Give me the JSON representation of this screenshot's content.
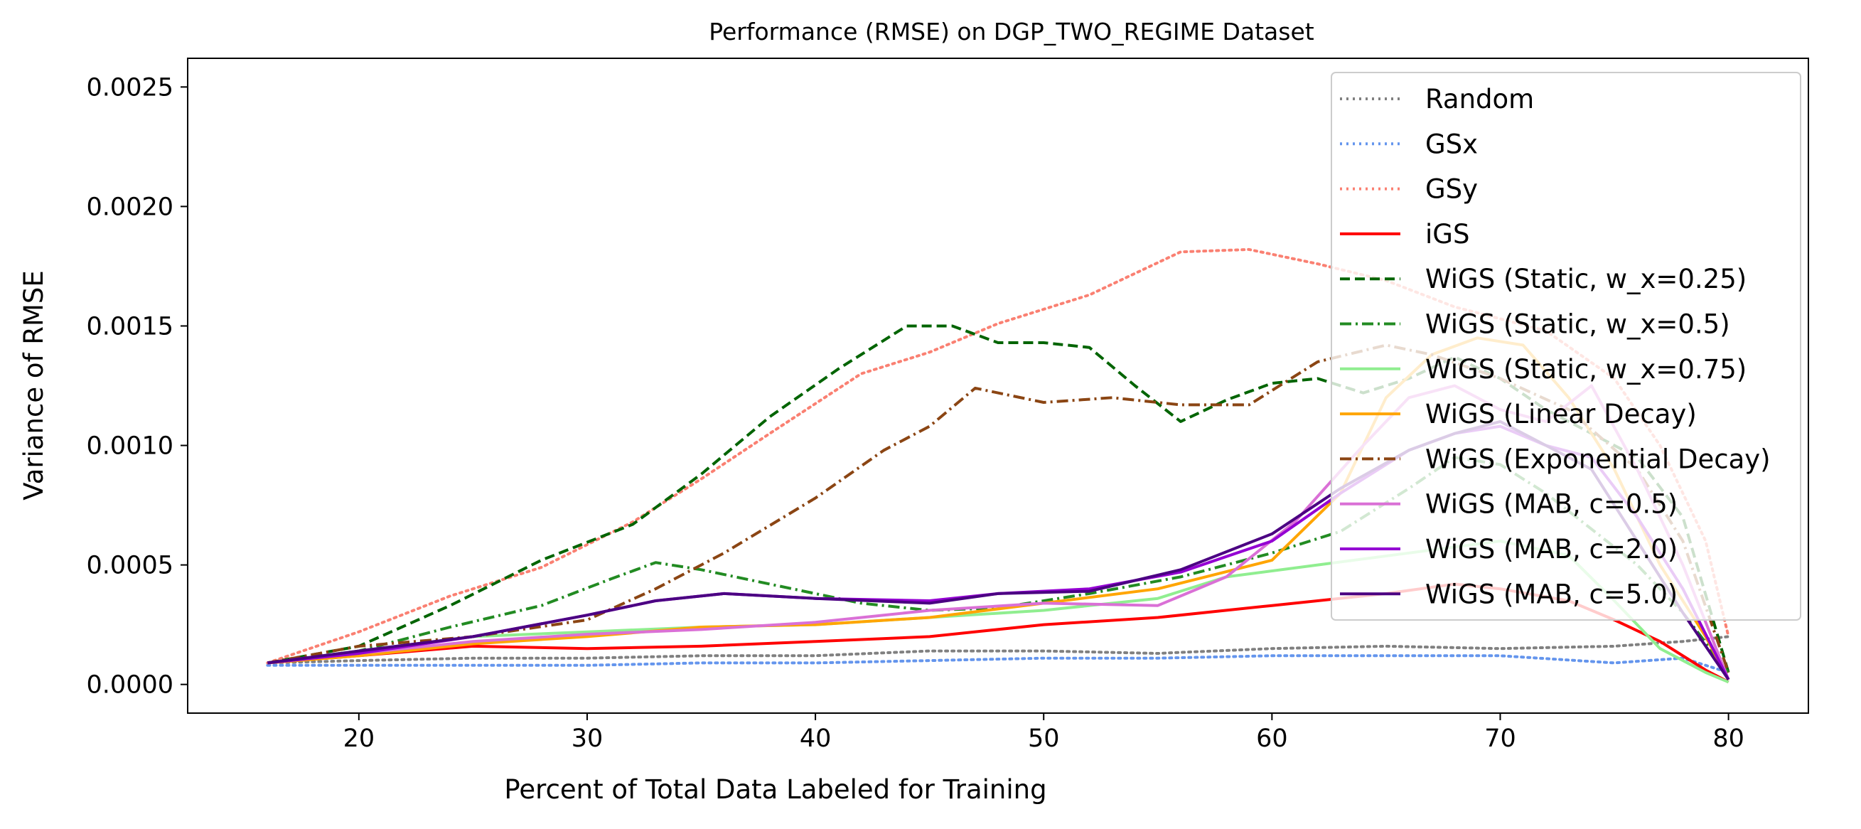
{
  "chart_data": {
    "type": "line",
    "title": "Performance (RMSE) on DGP_TWO_REGIME Dataset",
    "xlabel": "Percent of Total Data Labeled for Training",
    "ylabel": "Variance of RMSE",
    "xlim": [
      12.5,
      83.5
    ],
    "ylim": [
      -0.00012,
      0.00262
    ],
    "xticks": [
      20,
      30,
      40,
      50,
      60,
      70,
      80
    ],
    "yticks": [
      0.0,
      0.0005,
      0.001,
      0.0015,
      0.002,
      0.0025
    ],
    "xtick_labels": [
      "20",
      "30",
      "40",
      "50",
      "60",
      "70",
      "80"
    ],
    "ytick_labels": [
      "0.0000",
      "0.0005",
      "0.0010",
      "0.0015",
      "0.0020",
      "0.0025"
    ],
    "grid": false,
    "legend_position": "upper right",
    "series": [
      {
        "name": "Random",
        "color": "#808080",
        "dash": "dotted",
        "points": [
          [
            16,
            9e-05
          ],
          [
            20,
            0.0001
          ],
          [
            25,
            0.00011
          ],
          [
            30,
            0.00011
          ],
          [
            35,
            0.00012
          ],
          [
            40,
            0.00012
          ],
          [
            45,
            0.00014
          ],
          [
            50,
            0.00014
          ],
          [
            55,
            0.00013
          ],
          [
            60,
            0.00015
          ],
          [
            65,
            0.00016
          ],
          [
            70,
            0.00015
          ],
          [
            75,
            0.00016
          ],
          [
            78,
            0.00018
          ],
          [
            80,
            0.0002
          ]
        ]
      },
      {
        "name": "GSx",
        "color": "#6495ED",
        "dash": "dotted",
        "points": [
          [
            16,
            8e-05
          ],
          [
            20,
            8e-05
          ],
          [
            25,
            8e-05
          ],
          [
            30,
            8e-05
          ],
          [
            35,
            9e-05
          ],
          [
            40,
            9e-05
          ],
          [
            45,
            0.0001
          ],
          [
            50,
            0.00011
          ],
          [
            55,
            0.00011
          ],
          [
            60,
            0.00012
          ],
          [
            65,
            0.00012
          ],
          [
            70,
            0.00012
          ],
          [
            75,
            9e-05
          ],
          [
            78,
            0.00011
          ],
          [
            80,
            5e-05
          ]
        ]
      },
      {
        "name": "GSy",
        "color": "#FA8072",
        "dash": "dotted",
        "points": [
          [
            16,
            9e-05
          ],
          [
            20,
            0.00022
          ],
          [
            24,
            0.00037
          ],
          [
            28,
            0.00049
          ],
          [
            32,
            0.00068
          ],
          [
            35,
            0.00086
          ],
          [
            38,
            0.00105
          ],
          [
            42,
            0.0013
          ],
          [
            45,
            0.00139
          ],
          [
            48,
            0.00151
          ],
          [
            52,
            0.00163
          ],
          [
            56,
            0.00181
          ],
          [
            59,
            0.00182
          ],
          [
            62,
            0.00176
          ],
          [
            65,
            0.00169
          ],
          [
            68,
            0.00158
          ],
          [
            72,
            0.00148
          ],
          [
            75,
            0.00128
          ],
          [
            77,
            0.001
          ],
          [
            79,
            0.0006
          ],
          [
            80,
            0.0002
          ]
        ]
      },
      {
        "name": "iGS",
        "color": "#FF0000",
        "dash": "solid",
        "points": [
          [
            16,
            9e-05
          ],
          [
            20,
            0.00012
          ],
          [
            25,
            0.00016
          ],
          [
            30,
            0.00015
          ],
          [
            35,
            0.00016
          ],
          [
            40,
            0.00018
          ],
          [
            45,
            0.0002
          ],
          [
            50,
            0.00025
          ],
          [
            55,
            0.00028
          ],
          [
            60,
            0.00033
          ],
          [
            65,
            0.00038
          ],
          [
            68,
            0.00042
          ],
          [
            70,
            0.0004
          ],
          [
            73,
            0.00035
          ],
          [
            75,
            0.00027
          ],
          [
            77,
            0.00018
          ],
          [
            79,
            6e-05
          ],
          [
            80,
            1e-05
          ]
        ]
      },
      {
        "name": "WiGS (Static, w_x=0.25)",
        "color": "#006400",
        "dash": "dashed",
        "points": [
          [
            16,
            9e-05
          ],
          [
            20,
            0.00016
          ],
          [
            24,
            0.00033
          ],
          [
            28,
            0.00052
          ],
          [
            32,
            0.00067
          ],
          [
            35,
            0.00088
          ],
          [
            38,
            0.00112
          ],
          [
            41,
            0.00132
          ],
          [
            44,
            0.0015
          ],
          [
            46,
            0.0015
          ],
          [
            48,
            0.00143
          ],
          [
            50,
            0.00143
          ],
          [
            52,
            0.00141
          ],
          [
            54,
            0.00125
          ],
          [
            56,
            0.0011
          ],
          [
            58,
            0.00119
          ],
          [
            60,
            0.00126
          ],
          [
            62,
            0.00128
          ],
          [
            64,
            0.00122
          ],
          [
            66,
            0.00128
          ],
          [
            68,
            0.00137
          ],
          [
            70,
            0.00128
          ],
          [
            72,
            0.00115
          ],
          [
            74,
            0.00105
          ],
          [
            76,
            0.00095
          ],
          [
            78,
            0.0007
          ],
          [
            80,
            5e-05
          ]
        ]
      },
      {
        "name": "WiGS (Static, w_x=0.5)",
        "color": "#228B22",
        "dash": "dashdot",
        "points": [
          [
            16,
            9e-05
          ],
          [
            20,
            0.00014
          ],
          [
            24,
            0.00024
          ],
          [
            28,
            0.00033
          ],
          [
            31,
            0.00044
          ],
          [
            33,
            0.00051
          ],
          [
            35,
            0.00048
          ],
          [
            38,
            0.00042
          ],
          [
            42,
            0.00034
          ],
          [
            45,
            0.00031
          ],
          [
            48,
            0.00032
          ],
          [
            52,
            0.00038
          ],
          [
            56,
            0.00045
          ],
          [
            60,
            0.00055
          ],
          [
            63,
            0.00064
          ],
          [
            66,
            0.00082
          ],
          [
            68,
            0.00095
          ],
          [
            70,
            0.00092
          ],
          [
            72,
            0.0008
          ],
          [
            74,
            0.00065
          ],
          [
            76,
            0.0005
          ],
          [
            78,
            0.0003
          ],
          [
            80,
            5e-05
          ]
        ]
      },
      {
        "name": "WiGS (Static, w_x=0.75)",
        "color": "#90EE90",
        "dash": "solid",
        "points": [
          [
            16,
            9e-05
          ],
          [
            20,
            0.00014
          ],
          [
            25,
            0.0002
          ],
          [
            30,
            0.00022
          ],
          [
            35,
            0.00024
          ],
          [
            40,
            0.00025
          ],
          [
            45,
            0.00028
          ],
          [
            50,
            0.00031
          ],
          [
            55,
            0.00036
          ],
          [
            58,
            0.00045
          ],
          [
            62,
            0.0005
          ],
          [
            66,
            0.00055
          ],
          [
            70,
            0.0006
          ],
          [
            73,
            0.00054
          ],
          [
            75,
            0.00035
          ],
          [
            77,
            0.00015
          ],
          [
            79,
            5e-05
          ],
          [
            80,
            1e-05
          ]
        ]
      },
      {
        "name": "WiGS (Linear Decay)",
        "color": "#FFA500",
        "dash": "solid",
        "points": [
          [
            16,
            9e-05
          ],
          [
            20,
            0.00012
          ],
          [
            25,
            0.00017
          ],
          [
            30,
            0.0002
          ],
          [
            35,
            0.00024
          ],
          [
            40,
            0.00025
          ],
          [
            45,
            0.00028
          ],
          [
            50,
            0.00034
          ],
          [
            55,
            0.0004
          ],
          [
            60,
            0.00052
          ],
          [
            63,
            0.0008
          ],
          [
            65,
            0.0012
          ],
          [
            67,
            0.00138
          ],
          [
            69,
            0.00145
          ],
          [
            71,
            0.00142
          ],
          [
            73,
            0.0012
          ],
          [
            75,
            0.0009
          ],
          [
            77,
            0.0005
          ],
          [
            79,
            0.0002
          ],
          [
            80,
            2e-05
          ]
        ]
      },
      {
        "name": "WiGS (Exponential Decay)",
        "color": "#8B4513",
        "dash": "dashdot",
        "points": [
          [
            16,
            9e-05
          ],
          [
            20,
            0.00016
          ],
          [
            25,
            0.0002
          ],
          [
            30,
            0.00027
          ],
          [
            33,
            0.0004
          ],
          [
            36,
            0.00055
          ],
          [
            40,
            0.00078
          ],
          [
            43,
            0.00098
          ],
          [
            45,
            0.00108
          ],
          [
            47,
            0.00124
          ],
          [
            50,
            0.00118
          ],
          [
            53,
            0.0012
          ],
          [
            56,
            0.00117
          ],
          [
            59,
            0.00117
          ],
          [
            62,
            0.00135
          ],
          [
            65,
            0.00142
          ],
          [
            67,
            0.00138
          ],
          [
            70,
            0.00128
          ],
          [
            73,
            0.00115
          ],
          [
            76,
            0.0009
          ],
          [
            78,
            0.0006
          ],
          [
            80,
            5e-05
          ]
        ]
      },
      {
        "name": "WiGS (MAB, c=0.5)",
        "color": "#DA70D6",
        "dash": "solid",
        "points": [
          [
            16,
            9e-05
          ],
          [
            20,
            0.00013
          ],
          [
            25,
            0.00018
          ],
          [
            30,
            0.00021
          ],
          [
            35,
            0.00023
          ],
          [
            40,
            0.00026
          ],
          [
            45,
            0.00031
          ],
          [
            50,
            0.00034
          ],
          [
            55,
            0.00033
          ],
          [
            58,
            0.00045
          ],
          [
            61,
            0.00068
          ],
          [
            64,
            0.001
          ],
          [
            66,
            0.0012
          ],
          [
            68,
            0.00125
          ],
          [
            70,
            0.00115
          ],
          [
            72,
            0.0011
          ],
          [
            74,
            0.00125
          ],
          [
            76,
            0.0009
          ],
          [
            78,
            0.0005
          ],
          [
            80,
            2e-05
          ]
        ]
      },
      {
        "name": "WiGS (MAB, c=2.0)",
        "color": "#9400D3",
        "dash": "solid",
        "points": [
          [
            16,
            9e-05
          ],
          [
            20,
            0.00013
          ],
          [
            25,
            0.0002
          ],
          [
            30,
            0.00029
          ],
          [
            33,
            0.00035
          ],
          [
            36,
            0.00038
          ],
          [
            40,
            0.00036
          ],
          [
            45,
            0.00035
          ],
          [
            48,
            0.00038
          ],
          [
            52,
            0.0004
          ],
          [
            56,
            0.00047
          ],
          [
            60,
            0.0006
          ],
          [
            63,
            0.0008
          ],
          [
            66,
            0.00098
          ],
          [
            68,
            0.00105
          ],
          [
            70,
            0.00108
          ],
          [
            72,
            0.001
          ],
          [
            74,
            0.00095
          ],
          [
            76,
            0.0007
          ],
          [
            78,
            0.0004
          ],
          [
            80,
            2e-05
          ]
        ]
      },
      {
        "name": "WiGS (MAB, c=5.0)",
        "color": "#4B0082",
        "dash": "solid",
        "points": [
          [
            16,
            9e-05
          ],
          [
            20,
            0.00014
          ],
          [
            25,
            0.0002
          ],
          [
            30,
            0.00029
          ],
          [
            33,
            0.00035
          ],
          [
            36,
            0.00038
          ],
          [
            40,
            0.00036
          ],
          [
            45,
            0.00034
          ],
          [
            48,
            0.00038
          ],
          [
            52,
            0.00039
          ],
          [
            56,
            0.00048
          ],
          [
            60,
            0.00063
          ],
          [
            63,
            0.00082
          ],
          [
            66,
            0.00098
          ],
          [
            68,
            0.00105
          ],
          [
            70,
            0.0011
          ],
          [
            72,
            0.001
          ],
          [
            74,
            0.0009
          ],
          [
            76,
            0.0006
          ],
          [
            78,
            0.0003
          ],
          [
            80,
            2e-05
          ]
        ]
      }
    ]
  }
}
